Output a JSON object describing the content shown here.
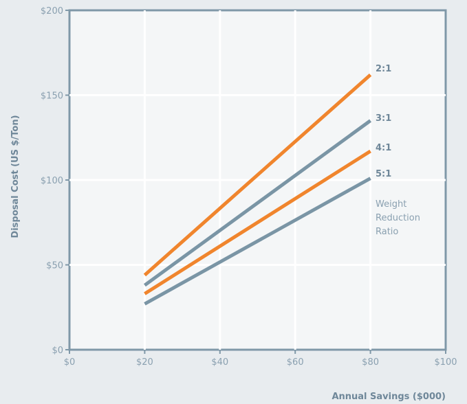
{
  "chart_data": {
    "type": "line",
    "xlabel": "Annual Savings ($000)",
    "ylabel": "Disposal Cost (US $/Ton)",
    "xlim": [
      0,
      100
    ],
    "ylim": [
      0,
      200
    ],
    "x_ticks": [
      0,
      20,
      40,
      60,
      80,
      100
    ],
    "y_ticks": [
      0,
      50,
      100,
      150,
      200
    ],
    "x_tick_labels": [
      "$0",
      "$20",
      "$40",
      "$60",
      "$80",
      "$100"
    ],
    "y_tick_labels": [
      "$0",
      "$50",
      "$100",
      "$150",
      "$200"
    ],
    "grid": true,
    "annotation": [
      "Weight",
      "Reduction",
      "Ratio"
    ],
    "series": [
      {
        "name": "2:1",
        "color": "#f0852d",
        "x": [
          20,
          80
        ],
        "y": [
          44,
          162
        ]
      },
      {
        "name": "3:1",
        "color": "#7a95a5",
        "x": [
          20,
          80
        ],
        "y": [
          38,
          135
        ]
      },
      {
        "name": "4:1",
        "color": "#f0852d",
        "x": [
          20,
          80
        ],
        "y": [
          33,
          117
        ]
      },
      {
        "name": "5:1",
        "color": "#7a95a5",
        "x": [
          20,
          80
        ],
        "y": [
          27,
          101
        ]
      }
    ]
  }
}
